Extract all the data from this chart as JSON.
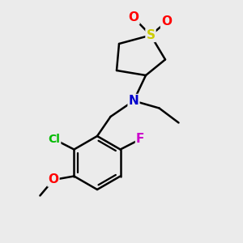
{
  "bg_color": "#ebebeb",
  "bond_color": "#000000",
  "atom_colors": {
    "S": "#cccc00",
    "O": "#ff0000",
    "N": "#0000cc",
    "Cl": "#00bb00",
    "F": "#cc00cc"
  },
  "bond_width": 1.8,
  "font_size_large": 11,
  "font_size_small": 10
}
